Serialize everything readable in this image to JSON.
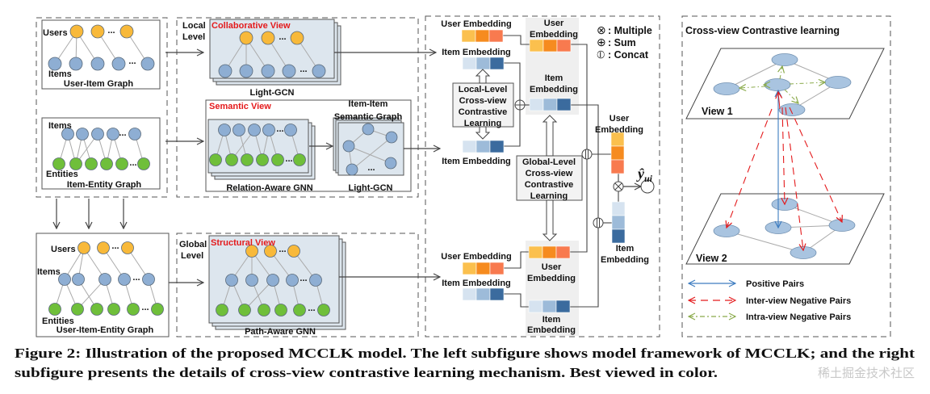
{
  "left": {
    "user_item_graph": {
      "users": "Users",
      "items": "Items",
      "title": "User-Item Graph"
    },
    "item_entity_graph": {
      "items": "Items",
      "entities": "Entities",
      "title": "Item-Entity Graph"
    },
    "uie_graph": {
      "users": "Users",
      "items": "Items",
      "entities": "Entities",
      "title": "User-Item-Entity Graph"
    },
    "ellipsis": "...",
    "local_level": [
      "Local",
      "Level"
    ],
    "global_level": [
      "Global",
      "Level"
    ],
    "collaborative_view": "Collaborative View",
    "light_gcn": "Light-GCN",
    "semantic_view": "Semantic View",
    "relation_aware_gnn": "Relation-Aware GNN",
    "item_item_graph": [
      "Item-Item",
      "Semantic Graph"
    ],
    "light_gcn_2": "Light-GCN",
    "structural_view": "Structural View",
    "path_aware_gnn": "Path-Aware GNN"
  },
  "middle": {
    "user_embedding": "User Embedding",
    "item_embedding": "Item Embedding",
    "user_split": [
      "User",
      "Embedding"
    ],
    "item_split": [
      "Item",
      "Embedding"
    ],
    "local_cl": [
      "Local-Level",
      "Cross-view",
      "Contrastive",
      "Learning"
    ],
    "global_cl": [
      "Global-Level",
      "Cross-view",
      "Contrastive",
      "Learning"
    ],
    "legend": [
      {
        "symbol": "⊗",
        "label": ": Multiple"
      },
      {
        "symbol": "⊕",
        "label": ": Sum"
      },
      {
        "symbol": "⦶",
        "label": ": Concat"
      }
    ],
    "output_symbol": "ŷ",
    "output_subscript": "ui"
  },
  "right": {
    "title": "Cross-view Contrastive learning",
    "view1": "View 1",
    "view2": "View 2",
    "legend": [
      "Positive Pairs",
      "Inter-view Negative Pairs",
      "Intra-view Negative Pairs"
    ]
  },
  "caption": {
    "line1": "Figure 2: Illustration of the proposed MCCLK model. The left subfigure shows model framework of MCCLK; and the right",
    "line2": "subfigure presents the details of cross-view contrastive learning mechanism. Best viewed in color."
  },
  "watermark": "稀土掘金技术社区",
  "colors": {
    "user_node": "#f8b93a",
    "item_node": "#8eaed3",
    "entity_node": "#6fbf3a",
    "view_label": "#e41a1c",
    "user_embedding": [
      "#fbc04e",
      "#f68b1f",
      "#f87a4f"
    ],
    "item_embedding": [
      "#d6e3f0",
      "#9dbbd9",
      "#3b6b9e"
    ],
    "positive_pairs": "#3d7cc0",
    "inter_view_negative": "#e41a1c",
    "intra_view_negative": "#8aaa4a"
  }
}
